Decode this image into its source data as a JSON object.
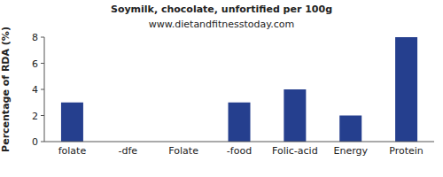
{
  "chart_data": {
    "type": "bar",
    "title": "Soymilk, chocolate, unfortified per 100g",
    "subtitle": "www.dietandfitnesstoday.com",
    "y_label": "Percentage of RDA (%)",
    "categories": [
      "folate",
      "-dfe",
      "Folate",
      "-food",
      "Folic-acid",
      "Energy",
      "Protein"
    ],
    "values": [
      3,
      0,
      0,
      3,
      4,
      2,
      8
    ],
    "color": "#253f8e",
    "ylim": [
      0,
      8
    ],
    "yticks": [
      0,
      2,
      4,
      6,
      8
    ],
    "grid": false
  }
}
